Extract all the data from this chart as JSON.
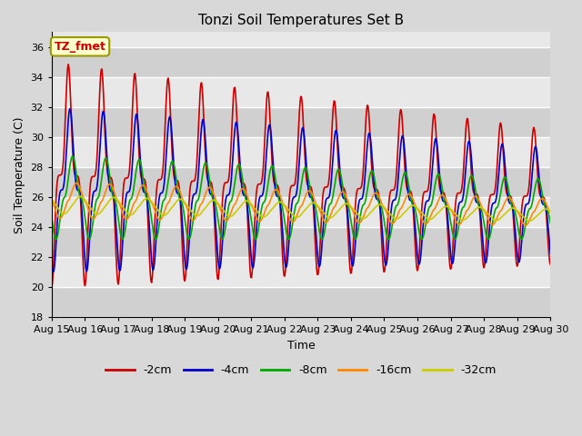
{
  "title": "Tonzi Soil Temperatures Set B",
  "xlabel": "Time",
  "ylabel": "Soil Temperature (C)",
  "annotation_text": "TZ_fmet",
  "annotation_bg": "#ffffcc",
  "annotation_border": "#999900",
  "annotation_color": "#cc0000",
  "ylim": [
    18,
    37
  ],
  "yticks": [
    18,
    20,
    22,
    24,
    26,
    28,
    30,
    32,
    34,
    36
  ],
  "x_tick_labels": [
    "Aug 15",
    "Aug 16",
    "Aug 17",
    "Aug 18",
    "Aug 19",
    "Aug 20",
    "Aug 21",
    "Aug 22",
    "Aug 23",
    "Aug 24",
    "Aug 25",
    "Aug 26",
    "Aug 27",
    "Aug 28",
    "Aug 29",
    "Aug 30"
  ],
  "series_colors": [
    "#cc0000",
    "#0000cc",
    "#00aa00",
    "#ff8800",
    "#cccc00"
  ],
  "series_labels": [
    "-2cm",
    "-4cm",
    "-8cm",
    "-16cm",
    "-32cm"
  ],
  "series_linewidth": 1.2,
  "bg_color": "#d8d8d8",
  "plot_bg_color_light": "#e8e8e8",
  "plot_bg_color_dark": "#d0d0d0",
  "grid_color": "#ffffff",
  "days": 15,
  "n_per_day": 48
}
